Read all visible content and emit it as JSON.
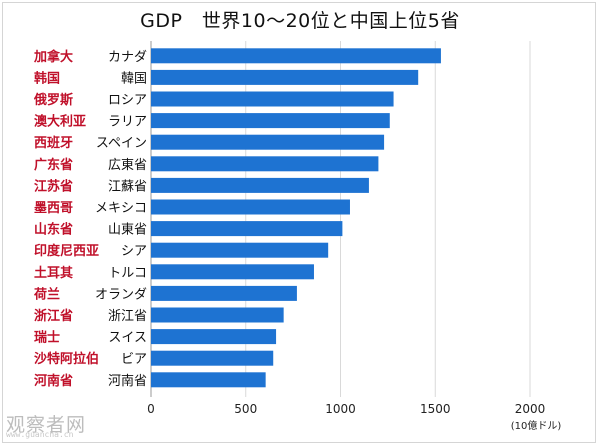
{
  "chart_data": {
    "type": "bar",
    "orientation": "horizontal",
    "title": "GDP　世界10〜20位と中国上位5省",
    "unit_label": "(10億ドル)",
    "xlim": [
      0,
      2000
    ],
    "xticks": [
      0,
      500,
      1000,
      1500,
      2000
    ],
    "grid": true,
    "bar_color": "#1e73d2",
    "annotation_color": "#c0102a",
    "categories": [
      "カナダ",
      "韓国",
      "ロシア",
      "オーストラリア",
      "スペイン",
      "広東省",
      "江蘇省",
      "メキシコ",
      "山東省",
      "インドネシア",
      "トルコ",
      "オランダ",
      "浙江省",
      "スイス",
      "サウジアラビア",
      "河南省"
    ],
    "category_labels_visible": [
      "カナダ",
      "韓国",
      "ロシア",
      "ラリア",
      "スペイン",
      "広東省",
      "江蘇省",
      "メキシコ",
      "山東省",
      "シア",
      "トルコ",
      "オランダ",
      "浙江省",
      "スイス",
      "ビア",
      "河南省"
    ],
    "chinese_labels": [
      "加拿大",
      "韩国",
      "俄罗斯",
      "澳大利亚",
      "西班牙",
      "广东省",
      "江苏省",
      "墨西哥",
      "山东省",
      "印度尼西亚",
      "土耳其",
      "荷兰",
      "浙江省",
      "瑞士",
      "沙特阿拉伯",
      "河南省"
    ],
    "values": [
      1530,
      1410,
      1280,
      1260,
      1230,
      1200,
      1150,
      1050,
      1010,
      935,
      860,
      770,
      700,
      660,
      645,
      605
    ]
  },
  "watermark": {
    "text": "观察者网",
    "url": "www.guancha.cn"
  }
}
